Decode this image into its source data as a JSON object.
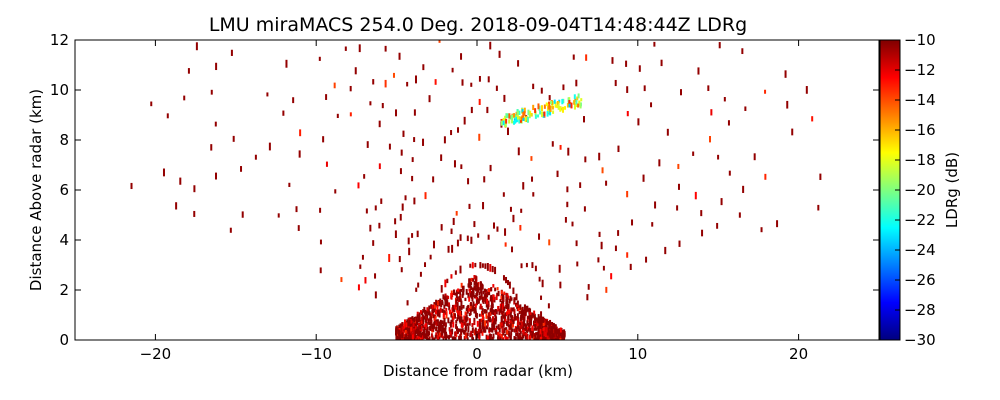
{
  "chart_data": {
    "type": "scatter",
    "title": "LMU miraMACS 254.0 Deg. 2018-09-04T14:48:44Z  LDRg",
    "xlabel": "Distance from radar (km)",
    "ylabel": "Distance Above radar  (km)",
    "xlim": [
      -25,
      25
    ],
    "ylim": [
      0,
      12
    ],
    "x_ticks": [
      -20,
      -10,
      0,
      10,
      20
    ],
    "y_ticks": [
      0,
      2,
      4,
      6,
      8,
      10,
      12
    ],
    "x_tick_labels": [
      "−20",
      "−10",
      "0",
      "10",
      "20"
    ],
    "y_tick_labels": [
      "0",
      "2",
      "4",
      "6",
      "8",
      "10",
      "12"
    ],
    "grid": false,
    "colorbar": {
      "label": "LDRg (dB)",
      "range": [
        -30,
        -10
      ],
      "ticks": [
        -10,
        -12,
        -14,
        -16,
        -18,
        -20,
        -22,
        -24,
        -26,
        -28,
        -30
      ],
      "tick_labels": [
        "−10",
        "−12",
        "−14",
        "−16",
        "−18",
        "−20",
        "−22",
        "−24",
        "−26",
        "−28",
        "−30"
      ],
      "colormap": "jet",
      "colormap_stops": [
        "#00007f",
        "#0000ff",
        "#007fff",
        "#00ffff",
        "#7fff7f",
        "#ffff00",
        "#ff7f00",
        "#ff0000",
        "#7f0000"
      ]
    },
    "scan_elevation_deg": 254.0,
    "features": [
      {
        "description": "dense near-radar echo",
        "x_range": [
          -5.5,
          5
        ],
        "y_range": [
          0,
          2.6
        ],
        "ldr_db_typical": -12
      },
      {
        "description": "sparse scattered echo along radial rays",
        "x_range": [
          -22,
          22
        ],
        "y_range": [
          0,
          12
        ],
        "ldr_db_typical": -11
      },
      {
        "description": "elevated layer with low LDR",
        "x_range": [
          1.5,
          6.5
        ],
        "y_range": [
          8.7,
          9.7
        ],
        "ldr_db_range": [
          -24,
          -13
        ]
      }
    ],
    "colors": {
      "dominant_echo": "#8b0000",
      "secondary_echo": "#ff0000"
    }
  }
}
